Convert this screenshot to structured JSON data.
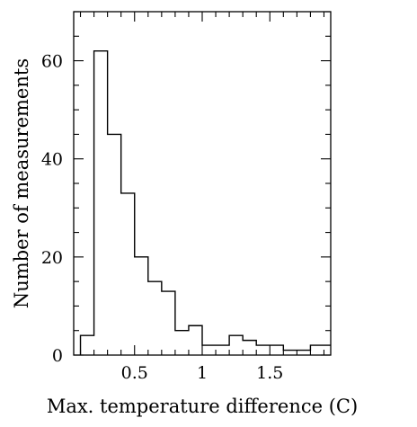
{
  "chart_data": {
    "type": "histogram",
    "title": "",
    "xlabel": "Max. temperature difference (C)",
    "ylabel": "Number of measurements",
    "xlim": [
      0.05,
      1.95
    ],
    "ylim": [
      0,
      70
    ],
    "bin_width": 0.1,
    "bin_starts": [
      0.1,
      0.2,
      0.3,
      0.4,
      0.5,
      0.6,
      0.7,
      0.8,
      0.9,
      1.0,
      1.1,
      1.2,
      1.3,
      1.4,
      1.5,
      1.6,
      1.7,
      1.8,
      1.9
    ],
    "counts": [
      4,
      62,
      45,
      33,
      20,
      15,
      13,
      5,
      6,
      2,
      2,
      4,
      3,
      2,
      2,
      1,
      1,
      2,
      2
    ],
    "x_ticks": [
      {
        "value": 0.5,
        "label": "0.5"
      },
      {
        "value": 1.0,
        "label": "1"
      },
      {
        "value": 1.5,
        "label": "1.5"
      }
    ],
    "y_ticks": [
      {
        "value": 0,
        "label": "0"
      },
      {
        "value": 20,
        "label": "20"
      },
      {
        "value": 40,
        "label": "40"
      },
      {
        "value": 60,
        "label": "60"
      }
    ],
    "x_minor_step": 0.1,
    "y_minor_step": 5,
    "grid": false,
    "style": "step-outline",
    "line_color": "#000000"
  }
}
